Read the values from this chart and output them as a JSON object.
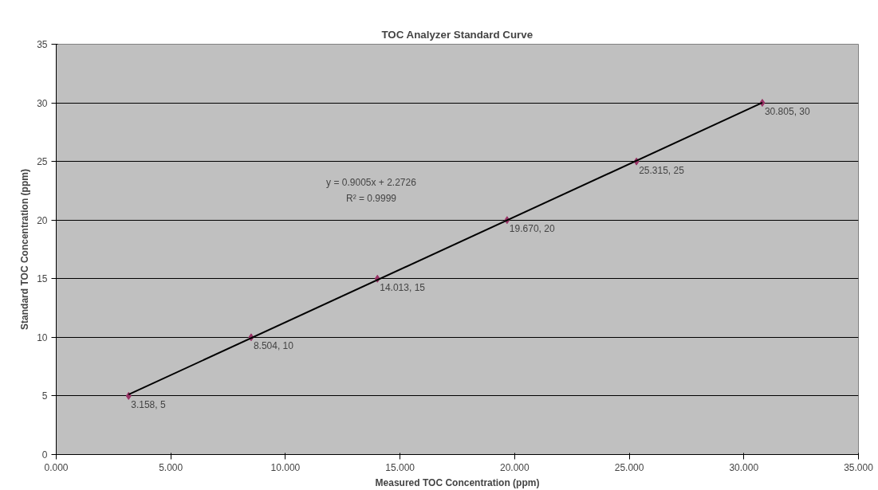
{
  "chart_data": {
    "type": "scatter",
    "title": "TOC Analyzer Standard Curve",
    "xlabel": "Measured TOC Concentration (ppm)",
    "ylabel": "Standard TOC Concentration (ppm)",
    "xlim": [
      0,
      35
    ],
    "ylim": [
      0,
      35
    ],
    "xticks": [
      {
        "value": 0,
        "label": "0.000"
      },
      {
        "value": 5,
        "label": "5.000"
      },
      {
        "value": 10,
        "label": "10.000"
      },
      {
        "value": 15,
        "label": "15.000"
      },
      {
        "value": 20,
        "label": "20.000"
      },
      {
        "value": 25,
        "label": "25.000"
      },
      {
        "value": 30,
        "label": "30.000"
      },
      {
        "value": 35,
        "label": "35.000"
      }
    ],
    "yticks": [
      0,
      5,
      10,
      15,
      20,
      25,
      30,
      35
    ],
    "grid": "y",
    "marker": "diamond",
    "series": [
      {
        "color": "#993366",
        "x": [
          3.158,
          8.504,
          14.013,
          19.67,
          25.315,
          30.805
        ],
        "values": [
          5,
          10,
          15,
          20,
          25,
          30
        ],
        "value_labels": [
          "3.158, 5",
          "8.504, 10",
          "14.013, 15",
          "19.670, 20",
          "25.315, 25",
          "30.805, 30"
        ]
      },
      {
        "type": "line",
        "color": "#000000",
        "x": [
          3.158,
          30.805
        ],
        "values": [
          5.12,
          30.01
        ],
        "marker": "none",
        "line_style": "solid"
      }
    ],
    "annotations": [
      "y = 0.9005x + 2.2726",
      "R² = 0.9999"
    ]
  }
}
